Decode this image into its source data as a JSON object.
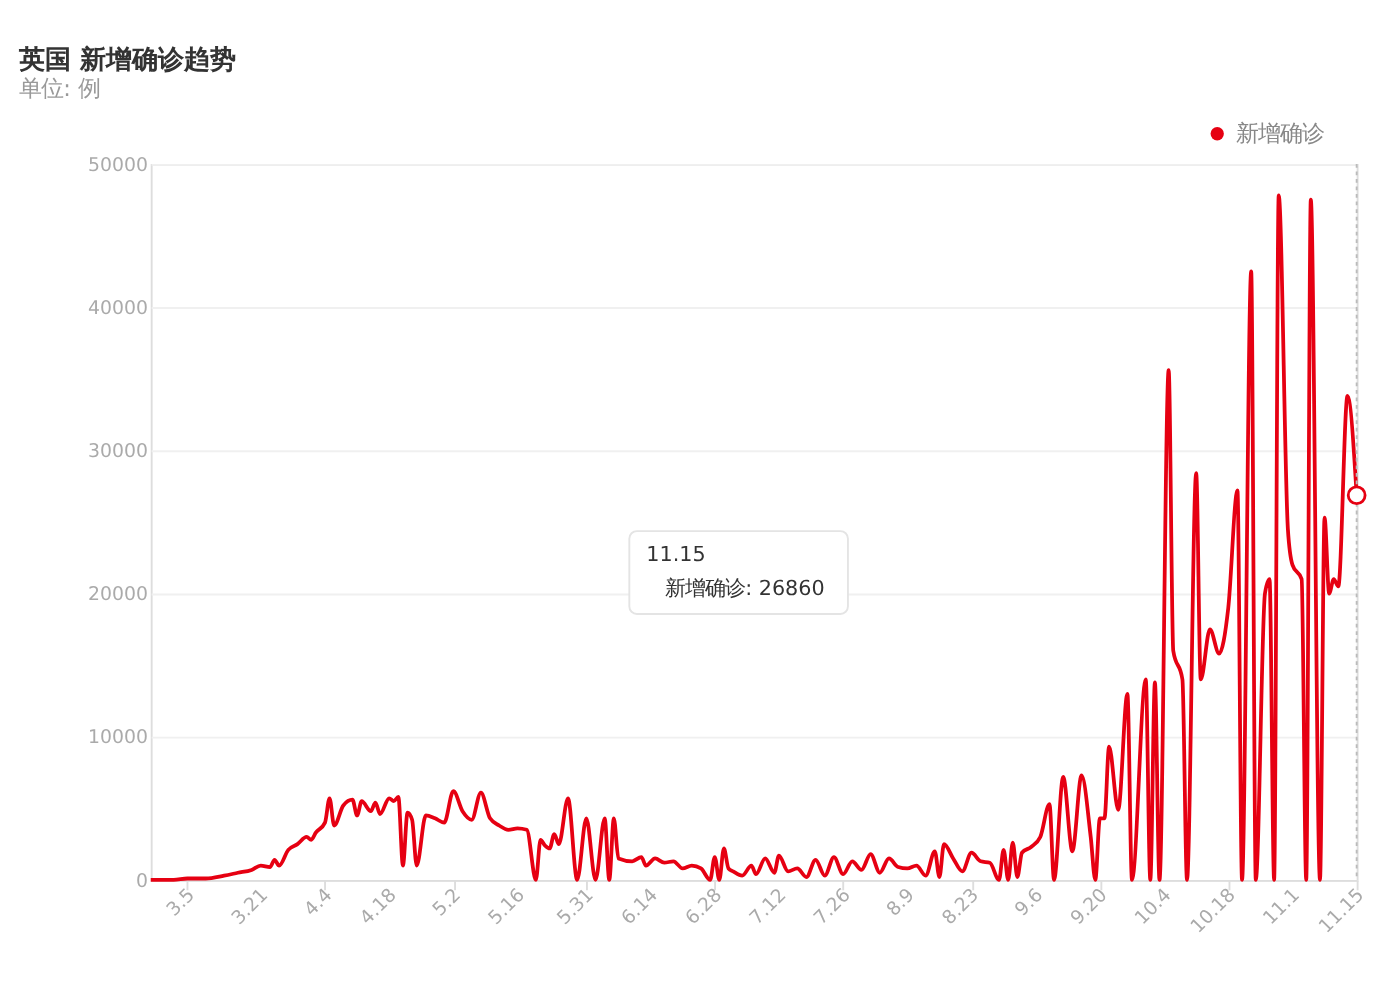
{
  "chart_data": {
    "type": "line",
    "title": "英国 新增确诊趋势",
    "subtitle": "单位: 例",
    "x": [
      "--02-26",
      "--03-02",
      "--03-05",
      "--03-09",
      "--03-13",
      "--03-16",
      "--03-19",
      "--03-21",
      "--03-23",
      "--03-24",
      "--03-25",
      "--03-27",
      "--03-29",
      "--03-31",
      "--04-01",
      "--04-02",
      "--04-04",
      "--04-05",
      "--04-06",
      "--04-08",
      "--04-10",
      "--04-11",
      "--04-12",
      "--04-14",
      "--04-15",
      "--04-16",
      "--04-18",
      "--04-19",
      "--04-20",
      "--04-21",
      "--04-22",
      "--04-23",
      "--04-24",
      "--04-26",
      "--04-28",
      "--04-30",
      "--05-02",
      "--05-04",
      "--05-06",
      "--05-08",
      "--05-10",
      "--05-12",
      "--05-14",
      "--05-16",
      "--05-18",
      "--05-20",
      "--05-21",
      "--05-22",
      "--05-23",
      "--05-24",
      "--05-25",
      "--05-27",
      "--05-29",
      "--05-31",
      "--06-02",
      "--06-04",
      "--06-05",
      "--06-06",
      "--06-07",
      "--06-10",
      "--06-12",
      "--06-13",
      "--06-15",
      "--06-17",
      "--06-19",
      "--06-21",
      "--06-23",
      "--06-25",
      "--06-27",
      "--06-28",
      "--06-29",
      "--06-30",
      "--07-01",
      "--07-02",
      "--07-04",
      "--07-06",
      "--07-07",
      "--07-09",
      "--07-11",
      "--07-12",
      "--07-14",
      "--07-16",
      "--07-18",
      "--07-20",
      "--07-22",
      "--07-24",
      "--07-26",
      "--07-28",
      "--07-30",
      "--08-01",
      "--08-03",
      "--08-05",
      "--08-07",
      "--08-09",
      "--08-11",
      "--08-13",
      "--08-15",
      "--08-16",
      "--08-17",
      "--08-19",
      "--08-21",
      "--08-23",
      "--08-25",
      "--08-27",
      "--08-29",
      "--08-30",
      "--08-31",
      "--09-01",
      "--09-02",
      "--09-03",
      "--09-05",
      "--09-07",
      "--09-09",
      "--09-10",
      "--09-12",
      "--09-14",
      "--09-16",
      "--09-18",
      "--09-19",
      "--09-20",
      "--09-21",
      "--09-22",
      "--09-24",
      "--09-26",
      "--09-27",
      "--09-30",
      "--10-01",
      "--10-02",
      "--10-03",
      "--10-05",
      "--10-06",
      "--10-08",
      "--10-09",
      "--10-11",
      "--10-12",
      "--10-14",
      "--10-16",
      "--10-18",
      "--10-20",
      "--10-21",
      "--10-23",
      "--10-24",
      "--10-26",
      "--10-27",
      "--10-28",
      "--10-29",
      "--10-31",
      "--11-01",
      "--11-03",
      "--11-04",
      "--11-05",
      "--11-07",
      "--11-08",
      "--11-09",
      "--11-10",
      "--11-11",
      "--11-13",
      "--11-15"
    ],
    "series": [
      {
        "name": "新增确诊",
        "color": "#e60012",
        "values": [
          0,
          0,
          100,
          100,
          300,
          500,
          700,
          1000,
          900,
          1400,
          1000,
          2100,
          2500,
          3000,
          2800,
          3300,
          4000,
          5700,
          3800,
          5200,
          5600,
          4500,
          5500,
          4800,
          5400,
          4600,
          5700,
          5500,
          5800,
          1000,
          4700,
          4200,
          1000,
          4500,
          4300,
          4000,
          6200,
          4800,
          4200,
          6100,
          4300,
          3800,
          3500,
          3600,
          3500,
          0,
          2800,
          2400,
          2200,
          3200,
          2500,
          5700,
          0,
          4300,
          0,
          4300,
          0,
          4300,
          1500,
          1300,
          1600,
          1000,
          1500,
          1200,
          1300,
          800,
          1000,
          800,
          0,
          1600,
          0,
          2200,
          800,
          600,
          300,
          1000,
          400,
          1500,
          500,
          1700,
          600,
          800,
          200,
          1400,
          300,
          1600,
          400,
          1300,
          700,
          1800,
          500,
          1500,
          900,
          800,
          1000,
          300,
          2000,
          200,
          2500,
          1500,
          600,
          1900,
          1300,
          1200,
          0,
          2100,
          0,
          2600,
          200,
          1900,
          2300,
          3000,
          5300,
          0,
          7200,
          2000,
          7300,
          3000,
          0,
          4300,
          4300,
          9300,
          4900,
          13000,
          0,
          14000,
          0,
          13800,
          0,
          35600,
          16000,
          14000,
          0,
          28400,
          14000,
          17500,
          15800,
          19000,
          27200,
          0,
          42500,
          0,
          20000,
          21000,
          0,
          47800,
          24500,
          22000,
          21000,
          0,
          47500,
          0,
          25300,
          20000,
          21000,
          20500,
          33800,
          26860
        ]
      }
    ],
    "ylim": [
      0,
      50000
    ],
    "yticks": [
      0,
      10000,
      20000,
      30000,
      40000,
      50000
    ],
    "xlim": [
      "--02-26",
      "--11-15"
    ],
    "xticks": [
      {
        "value": "--03-05",
        "label": "3.5"
      },
      {
        "value": "--03-21",
        "label": "3.21"
      },
      {
        "value": "--04-04",
        "label": "4.4"
      },
      {
        "value": "--04-18",
        "label": "4.18"
      },
      {
        "value": "--05-02",
        "label": "5.2"
      },
      {
        "value": "--05-16",
        "label": "5.16"
      },
      {
        "value": "--05-31",
        "label": "5.31"
      },
      {
        "value": "--06-14",
        "label": "6.14"
      },
      {
        "value": "--06-28",
        "label": "6.28"
      },
      {
        "value": "--07-12",
        "label": "7.12"
      },
      {
        "value": "--07-26",
        "label": "7.26"
      },
      {
        "value": "--08-09",
        "label": "8.9"
      },
      {
        "value": "--08-23",
        "label": "8.23"
      },
      {
        "value": "--09-06",
        "label": "9.6"
      },
      {
        "value": "--09-20",
        "label": "9.20"
      },
      {
        "value": "--10-04",
        "label": "10.4"
      },
      {
        "value": "--10-18",
        "label": "10.18"
      },
      {
        "value": "--11-01",
        "label": "11.1"
      },
      {
        "value": "--11-15",
        "label": "11.15"
      }
    ],
    "grid": "y",
    "legend": "top right",
    "marker": "none",
    "line_style": "solid",
    "annotations": [
      "11.15",
      "新增确诊: 26860"
    ]
  }
}
